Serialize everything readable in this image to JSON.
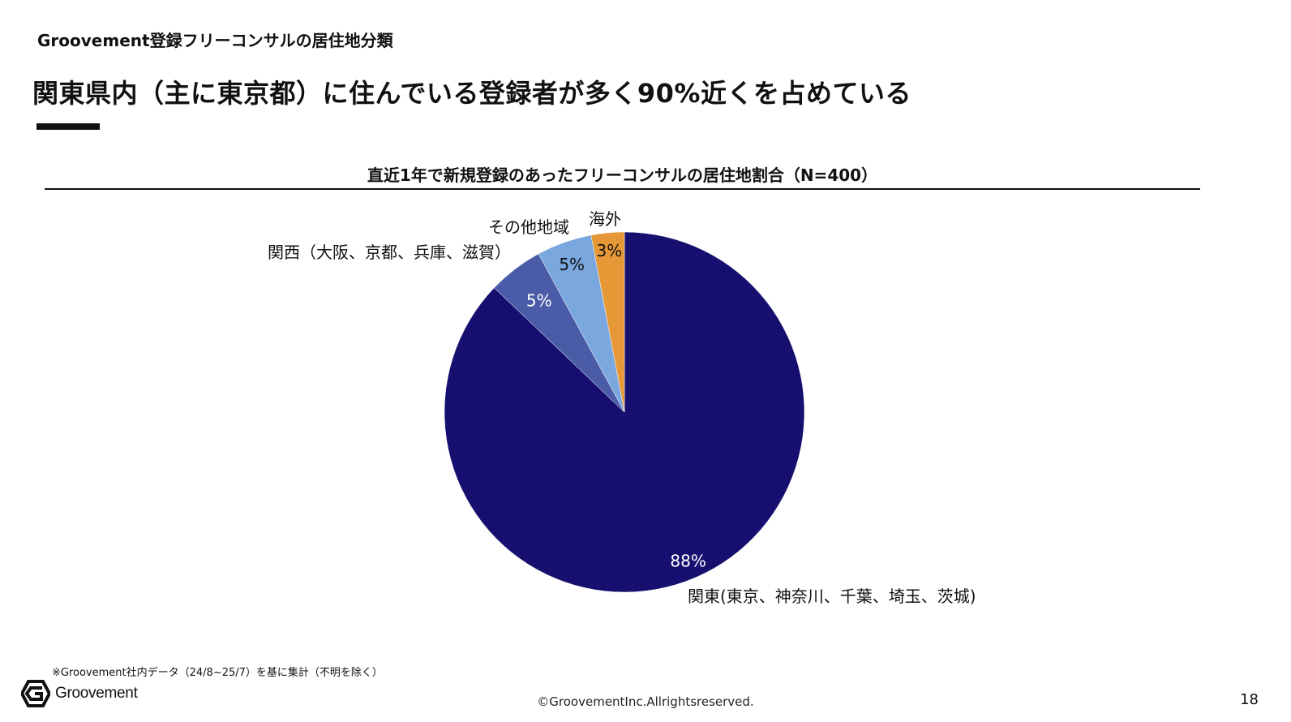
{
  "slide": {
    "supertitle": "Groovement登録フリーコンサルの居住地分類",
    "headline": "関東県内（主に東京都）に住んでいる登録者が多く90%近くを占めている",
    "note": "※Groovement社内データ（24/8~25/7）を基に集計（不明を除く）",
    "logo_text": "Groovement",
    "copyright": "©GroovementInc.Allrightsreserved.",
    "page_number": "18"
  },
  "chart_data": {
    "type": "pie",
    "title": "直近1年で新規登録のあったフリーコンサルの居住地割合（N=400）",
    "slices": [
      {
        "label": "関東(東京、神奈川、千葉、埼玉、茨城)",
        "value": 88,
        "value_label": "88%",
        "color": "#160f6f",
        "text_color": "#ffffff"
      },
      {
        "label": "関西（大阪、京都、兵庫、滋賀）",
        "value": 5,
        "value_label": "5%",
        "color": "#4a5ba8",
        "text_color": "#ffffff"
      },
      {
        "label": "その他地域",
        "value": 5,
        "value_label": "5%",
        "color": "#79a7de",
        "text_color": "#111111"
      },
      {
        "label": "海外",
        "value": 3,
        "value_label": "3%",
        "color": "#e69836",
        "text_color": "#111111"
      }
    ],
    "start": "12 o'clock",
    "direction": "clockwise",
    "legend": "none"
  }
}
